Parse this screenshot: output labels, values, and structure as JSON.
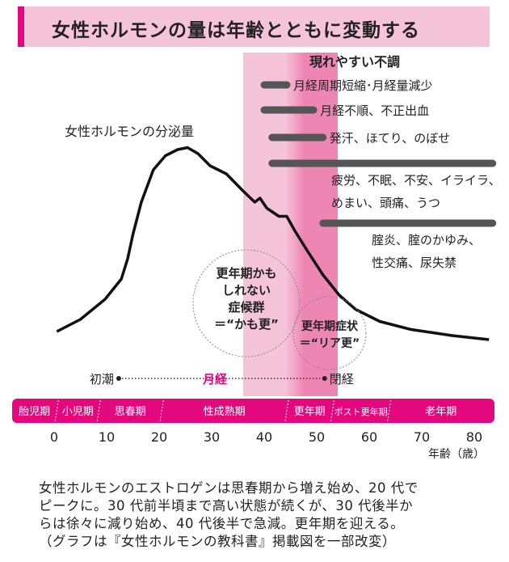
{
  "title": "女性ホルモンの量は年齢とともに変動する",
  "colors": {
    "accent": "#e4087f",
    "band_light": "#f6c4d8",
    "band_dark": "#ee86b4",
    "bar": "#555555",
    "title_bg": "#f6c4d8"
  },
  "chart_data": {
    "type": "line",
    "title": "女性ホルモンの分泌量",
    "xlabel": "年齢（歳）",
    "xlim": [
      0,
      85
    ],
    "xticks": [
      "0",
      "10",
      "20",
      "30",
      "40",
      "50",
      "60",
      "70",
      "80"
    ],
    "series": [
      {
        "x": [
          0.5,
          5,
          9.7,
          12.8,
          14,
          15,
          16.6,
          18.9,
          21.2,
          23.5,
          25.4,
          27.4,
          29.7,
          32.8,
          35.8,
          38.2,
          39.2,
          40.5,
          42.8,
          44.3,
          45.8,
          48.2,
          51.2,
          54.3,
          57.4,
          62,
          68,
          75.8,
          82.8
        ],
        "y": [
          8,
          14,
          24,
          34,
          44,
          56,
          72,
          88,
          95,
          98,
          99,
          96,
          90,
          86,
          78,
          72,
          74,
          69,
          65,
          65,
          58,
          48,
          36,
          26,
          19,
          13,
          9,
          6,
          4
        ]
      }
    ],
    "bands": [
      {
        "from": 36,
        "to": 54,
        "shade": "light"
      },
      {
        "from": 44,
        "to": 54,
        "shade": "dark"
      }
    ],
    "symptoms_title": "現れやすい不調",
    "symptoms": [
      {
        "from": 40,
        "to": 44.3,
        "lines": [
          "月経周期短縮･月経量減少"
        ]
      },
      {
        "from": 40,
        "to": 49.4,
        "lines": [
          "月経不順、不正出血"
        ]
      },
      {
        "from": 41.5,
        "to": 51.2,
        "lines": [
          "発汗、ほてり、のぼせ"
        ]
      },
      {
        "from": 41.5,
        "to": 83.5,
        "lines": [
          "疲労、不眠、不安、イライラ、",
          "めまい、頭痛、うつ"
        ]
      },
      {
        "from": 51.2,
        "to": 83.5,
        "lines": [
          "腟炎、腟のかゆみ、",
          "性交痛、尿失禁"
        ]
      }
    ],
    "circles": [
      {
        "lines": [
          "更年期かも",
          "しれない",
          "症候群",
          "＝“かも更”"
        ]
      },
      {
        "lines": [
          "更年期症状",
          "＝“リア更”"
        ]
      }
    ],
    "menstruation": {
      "start_label": "初潮",
      "start_age": 12.3,
      "label": "月経",
      "end_label": "閉経",
      "end_age": 51.5
    },
    "stages": [
      {
        "label": "胎児期",
        "from": -8,
        "to": 0.5
      },
      {
        "label": "小児期",
        "from": 0.5,
        "to": 8.5
      },
      {
        "label": "思春期",
        "from": 8.5,
        "to": 20.5
      },
      {
        "label": "性成熟期",
        "from": 20.5,
        "to": 44.3
      },
      {
        "label": "更年期",
        "from": 44.3,
        "to": 53
      },
      {
        "label": "ポスト更年期",
        "from": 53,
        "to": 63.8
      },
      {
        "label": "老年期",
        "from": 63.8,
        "to": 83.5
      }
    ]
  },
  "caption": [
    "女性ホルモンのエストロゲンは思春期から増え始め、20 代で",
    "ピークに。30 代前半頃まで高い状態が続くが、30 代後半か",
    "らは徐々に減り始め、40 代後半で急減。更年期を迎える。",
    "（グラフは『女性ホルモンの教科書』掲載図を一部改変）"
  ]
}
